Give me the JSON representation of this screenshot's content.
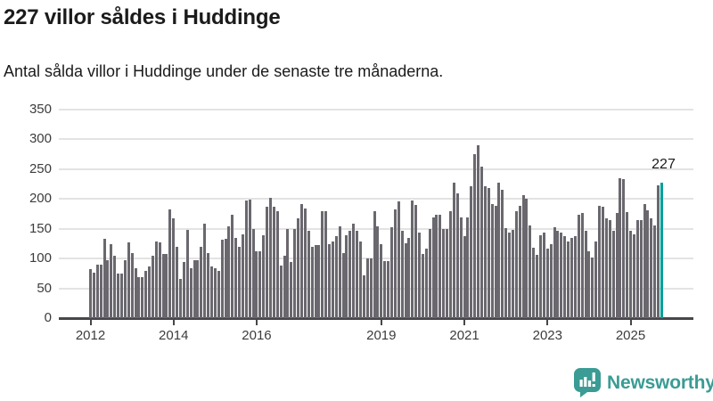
{
  "header": {
    "title": "227 villor såldes i Huddinge",
    "subtitle": "Antal sålda villor i Huddinge under de senaste tre månaderna."
  },
  "annotation": {
    "label": "227"
  },
  "logo": {
    "text": "Newsworthy",
    "icon": "newsworthy-bar-chart-bubble-icon",
    "color": "#3a9c94"
  },
  "colors": {
    "background": "#ffffff",
    "bar": "#6a686e",
    "highlight": "#00a09a",
    "grid": "#e3e3e3",
    "axis": "#47464b",
    "text": "#1b1b1b",
    "axis_text": "#3c3c3c"
  },
  "chart_data": {
    "type": "bar",
    "title": "227 villor såldes i Huddinge",
    "subtitle": "Antal sålda villor i Huddinge under de senaste tre månaderna.",
    "xlabel": "",
    "ylabel": "",
    "start_month": "2012-01",
    "end_month": "2025-10",
    "ylim": [
      0,
      350
    ],
    "yticks": [
      0,
      50,
      100,
      150,
      200,
      250,
      300,
      350
    ],
    "grid": "horizontal",
    "legend": "none",
    "xticks": [
      {
        "label": "2012",
        "month_index": 0
      },
      {
        "label": "2014",
        "month_index": 24
      },
      {
        "label": "2016",
        "month_index": 48
      },
      {
        "label": "2019",
        "month_index": 84
      },
      {
        "label": "2021",
        "month_index": 108
      },
      {
        "label": "2023",
        "month_index": 132
      },
      {
        "label": "2025",
        "month_index": 156
      }
    ],
    "values": [
      82,
      77,
      90,
      90,
      133,
      98,
      124,
      105,
      75,
      75,
      97,
      127,
      110,
      84,
      69,
      69,
      79,
      87,
      105,
      129,
      127,
      108,
      108,
      182,
      167,
      120,
      66,
      94,
      148,
      84,
      98,
      98,
      120,
      159,
      110,
      87,
      84,
      79,
      132,
      133,
      154,
      173,
      134,
      119,
      140,
      197,
      199,
      149,
      112,
      112,
      139,
      187,
      202,
      187,
      179,
      89,
      105,
      149,
      94,
      150,
      167,
      192,
      184,
      147,
      119,
      123,
      123,
      180,
      180,
      124,
      129,
      137,
      154,
      110,
      139,
      147,
      159,
      147,
      129,
      72,
      100,
      100,
      180,
      154,
      124,
      96,
      96,
      152,
      182,
      196,
      146,
      125,
      134,
      197,
      190,
      143,
      108,
      116,
      150,
      169,
      174,
      173,
      149,
      149,
      180,
      228,
      209,
      169,
      137,
      169,
      222,
      275,
      290,
      255,
      222,
      219,
      192,
      189,
      228,
      215,
      151,
      143,
      148,
      180,
      188,
      206,
      200,
      155,
      118,
      106,
      139,
      143,
      116,
      124,
      152,
      147,
      144,
      137,
      129,
      134,
      137,
      174,
      177,
      147,
      112,
      102,
      129,
      189,
      187,
      167,
      165,
      146,
      176,
      235,
      234,
      178,
      146,
      140,
      165,
      165,
      191,
      181,
      167,
      156,
      223,
      227
    ],
    "highlight_last": true,
    "highlight_value": 227
  }
}
